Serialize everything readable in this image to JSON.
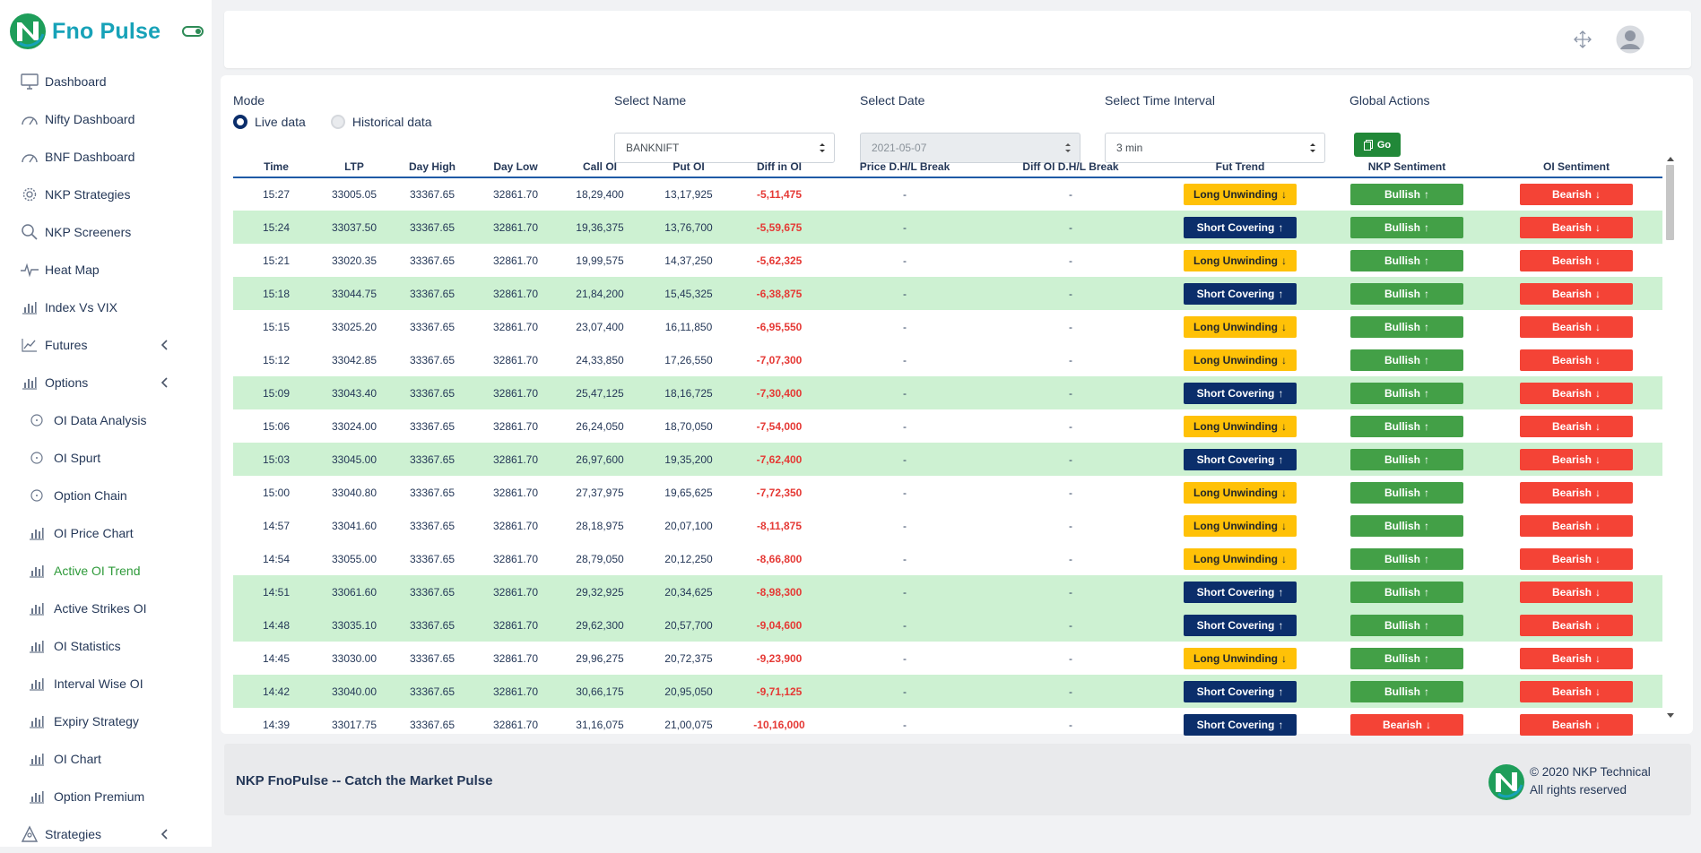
{
  "brand": {
    "name": "Fno Pulse"
  },
  "sidebar": {
    "items": [
      {
        "label": "Dashboard",
        "icon": "monitor-icon"
      },
      {
        "label": "Nifty Dashboard",
        "icon": "gauge-icon"
      },
      {
        "label": "BNF Dashboard",
        "icon": "gauge-icon"
      },
      {
        "label": "NKP Strategies",
        "icon": "gear-icon"
      },
      {
        "label": "NKP Screeners",
        "icon": "search-icon"
      },
      {
        "label": "Heat Map",
        "icon": "pulse-icon"
      },
      {
        "label": "Index Vs VIX",
        "icon": "bar-chart-icon"
      },
      {
        "label": "Futures",
        "icon": "line-chart-icon"
      },
      {
        "label": "Options",
        "icon": "bar-chart-icon"
      }
    ],
    "sub_items": [
      {
        "label": "OI Data Analysis",
        "icon": "circle-icon"
      },
      {
        "label": "OI Spurt",
        "icon": "circle-icon"
      },
      {
        "label": "Option Chain",
        "icon": "circle-icon"
      },
      {
        "label": "OI Price Chart",
        "icon": "bar-chart-icon"
      },
      {
        "label": "Active OI Trend",
        "icon": "bar-chart-icon"
      },
      {
        "label": "Active Strikes OI",
        "icon": "bar-chart-icon"
      },
      {
        "label": "OI Statistics",
        "icon": "bar-chart-icon"
      },
      {
        "label": "Interval Wise OI",
        "icon": "bar-chart-icon"
      },
      {
        "label": "Expiry Strategy",
        "icon": "bar-chart-icon"
      },
      {
        "label": "OI Chart",
        "icon": "bar-chart-icon"
      },
      {
        "label": "Option Premium",
        "icon": "bar-chart-icon"
      }
    ],
    "bottom_item": {
      "label": "Strategies",
      "icon": "strategy-icon"
    },
    "active_item": "Active OI Trend"
  },
  "filters": {
    "mode_label": "Mode",
    "live_label": "Live data",
    "historical_label": "Historical data",
    "selected_mode": "Live data",
    "name_label": "Select Name",
    "name_value": "BANKNIFT",
    "date_label": "Select Date",
    "date_value": "2021-05-07",
    "interval_label": "Select Time Interval",
    "interval_value": "3 min",
    "actions_label": "Global Actions",
    "go_label": "Go"
  },
  "table": {
    "headers": [
      "Time",
      "LTP",
      "Day High",
      "Day Low",
      "Call OI",
      "Put OI",
      "Diff in OI",
      "Price D.H/L Break",
      "Diff OI D.H/L Break",
      "Fut Trend",
      "NKP Sentiment",
      "OI Sentiment"
    ],
    "rows": [
      [
        "15:27",
        "33005.05",
        "33367.65",
        "32861.70",
        "18,29,400",
        "13,17,925",
        "-5,11,475",
        "-",
        "-",
        "Long Unwinding",
        "Bullish",
        "Bearish"
      ],
      [
        "15:24",
        "33037.50",
        "33367.65",
        "32861.70",
        "19,36,375",
        "13,76,700",
        "-5,59,675",
        "-",
        "-",
        "Short Covering",
        "Bullish",
        "Bearish"
      ],
      [
        "15:21",
        "33020.35",
        "33367.65",
        "32861.70",
        "19,99,575",
        "14,37,250",
        "-5,62,325",
        "-",
        "-",
        "Long Unwinding",
        "Bullish",
        "Bearish"
      ],
      [
        "15:18",
        "33044.75",
        "33367.65",
        "32861.70",
        "21,84,200",
        "15,45,325",
        "-6,38,875",
        "-",
        "-",
        "Short Covering",
        "Bullish",
        "Bearish"
      ],
      [
        "15:15",
        "33025.20",
        "33367.65",
        "32861.70",
        "23,07,400",
        "16,11,850",
        "-6,95,550",
        "-",
        "-",
        "Long Unwinding",
        "Bullish",
        "Bearish"
      ],
      [
        "15:12",
        "33042.85",
        "33367.65",
        "32861.70",
        "24,33,850",
        "17,26,550",
        "-7,07,300",
        "-",
        "-",
        "Long Unwinding",
        "Bullish",
        "Bearish"
      ],
      [
        "15:09",
        "33043.40",
        "33367.65",
        "32861.70",
        "25,47,125",
        "18,16,725",
        "-7,30,400",
        "-",
        "-",
        "Short Covering",
        "Bullish",
        "Bearish"
      ],
      [
        "15:06",
        "33024.00",
        "33367.65",
        "32861.70",
        "26,24,050",
        "18,70,050",
        "-7,54,000",
        "-",
        "-",
        "Long Unwinding",
        "Bullish",
        "Bearish"
      ],
      [
        "15:03",
        "33045.00",
        "33367.65",
        "32861.70",
        "26,97,600",
        "19,35,200",
        "-7,62,400",
        "-",
        "-",
        "Short Covering",
        "Bullish",
        "Bearish"
      ],
      [
        "15:00",
        "33040.80",
        "33367.65",
        "32861.70",
        "27,37,975",
        "19,65,625",
        "-7,72,350",
        "-",
        "-",
        "Long Unwinding",
        "Bullish",
        "Bearish"
      ],
      [
        "14:57",
        "33041.60",
        "33367.65",
        "32861.70",
        "28,18,975",
        "20,07,100",
        "-8,11,875",
        "-",
        "-",
        "Long Unwinding",
        "Bullish",
        "Bearish"
      ],
      [
        "14:54",
        "33055.00",
        "33367.65",
        "32861.70",
        "28,79,050",
        "20,12,250",
        "-8,66,800",
        "-",
        "-",
        "Long Unwinding",
        "Bullish",
        "Bearish"
      ],
      [
        "14:51",
        "33061.60",
        "33367.65",
        "32861.70",
        "29,32,925",
        "20,34,625",
        "-8,98,300",
        "-",
        "-",
        "Short Covering",
        "Bullish",
        "Bearish"
      ],
      [
        "14:48",
        "33035.10",
        "33367.65",
        "32861.70",
        "29,62,300",
        "20,57,700",
        "-9,04,600",
        "-",
        "-",
        "Short Covering",
        "Bullish",
        "Bearish"
      ],
      [
        "14:45",
        "33030.00",
        "33367.65",
        "32861.70",
        "29,96,275",
        "20,72,375",
        "-9,23,900",
        "-",
        "-",
        "Long Unwinding",
        "Bullish",
        "Bearish"
      ],
      [
        "14:42",
        "33040.00",
        "33367.65",
        "32861.70",
        "30,66,175",
        "20,95,050",
        "-9,71,125",
        "-",
        "-",
        "Short Covering",
        "Bullish",
        "Bearish"
      ],
      [
        "14:39",
        "33017.75",
        "33367.65",
        "32861.70",
        "31,16,075",
        "21,00,075",
        "-10,16,000",
        "-",
        "-",
        "Short Covering",
        "Bearish",
        "Bearish"
      ]
    ],
    "highlighted_rows": [
      1,
      3,
      6,
      8,
      12,
      13,
      15
    ]
  },
  "footer": {
    "tagline": "NKP FnoPulse -- Catch the Market Pulse",
    "copyright_line1": "© 2020 NKP Technical",
    "copyright_line2": "All rights reserved"
  },
  "colors": {
    "brand": "#17a2b8",
    "long_unwinding": "#ffc107",
    "short_covering": "#0b2e6b",
    "bullish": "#43a047",
    "bearish": "#f44336",
    "highlight_row": "#cdf1d2",
    "active_nav": "#2e9a3a"
  }
}
